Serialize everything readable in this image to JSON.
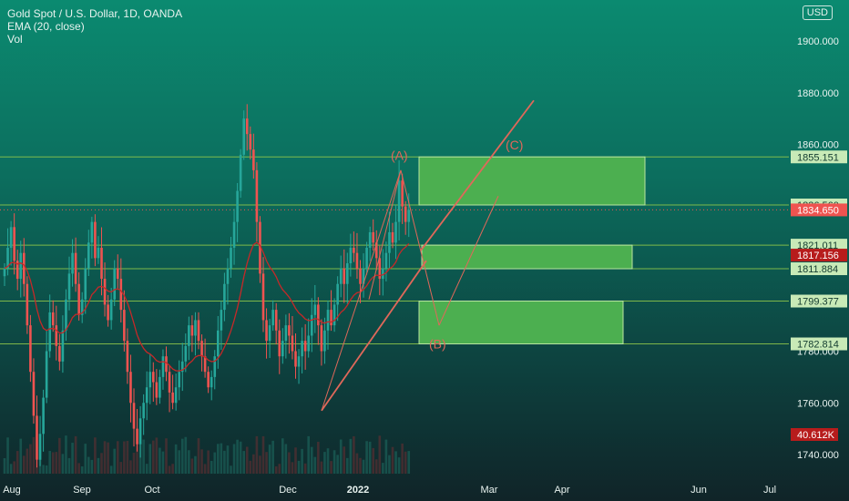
{
  "legend": {
    "symbol": "Gold Spot / U.S. Dollar, 1D, OANDA",
    "ema": "EMA (20, close)",
    "vol": "Vol"
  },
  "currency_button": "USD",
  "colors": {
    "up": "#26a69a",
    "down": "#ef5350",
    "ema": "#c62828",
    "zone": "#4caf50",
    "hline": "#8bc34a",
    "last_price_tag": "#ef5350",
    "volume_tag": "#b71c1c",
    "annotation": "#e0685a"
  },
  "chart_data": {
    "type": "candlestick",
    "title": "Gold Spot / U.S. Dollar, 1D, OANDA",
    "y_ticks": [
      "1900.000",
      "1880.000",
      "1860.000",
      "1760.000",
      "1740.000"
    ],
    "ylim": [
      1730,
      1910
    ],
    "x_labels": [
      "Aug",
      "Sep",
      "Oct",
      "Dec",
      "2022",
      "Mar",
      "Apr",
      "Jun",
      "Jul"
    ],
    "x_labels_bold": [
      "2022"
    ],
    "horizontal_levels": [
      1855.151,
      1836.56,
      1821.011,
      1811.884,
      1799.377,
      1782.814
    ],
    "price_tags": [
      {
        "label": "1855.151",
        "value": 1855.151,
        "kind": "level"
      },
      {
        "label": "1836.560",
        "value": 1836.56,
        "kind": "level"
      },
      {
        "label": "1834.650",
        "value": 1834.65,
        "kind": "last"
      },
      {
        "label": "1821.011",
        "value": 1821.011,
        "kind": "level"
      },
      {
        "label": "1817.156",
        "value": 1817.156,
        "kind": "ema"
      },
      {
        "label": "1811.884",
        "value": 1811.884,
        "kind": "level"
      },
      {
        "label": "1799.377",
        "value": 1799.377,
        "kind": "level"
      },
      {
        "label": "1782.814",
        "value": 1782.814,
        "kind": "level"
      }
    ],
    "volume_tag": "40.612K",
    "partial_tick": "1780.000",
    "annotations": [
      "(A)",
      "(B)",
      "(C)"
    ],
    "zones": [
      {
        "top": 1855.151,
        "bottom": 1836.56
      },
      {
        "top": 1821.011,
        "bottom": 1811.884
      },
      {
        "top": 1799.377,
        "bottom": 1782.814
      }
    ],
    "closes": [
      1812,
      1820,
      1828,
      1815,
      1808,
      1818,
      1806,
      1790,
      1772,
      1755,
      1738,
      1748,
      1762,
      1780,
      1795,
      1790,
      1782,
      1776,
      1788,
      1800,
      1810,
      1818,
      1806,
      1794,
      1800,
      1812,
      1822,
      1830,
      1816,
      1820,
      1808,
      1798,
      1792,
      1800,
      1812,
      1808,
      1796,
      1784,
      1772,
      1760,
      1750,
      1744,
      1754,
      1760,
      1766,
      1772,
      1768,
      1762,
      1770,
      1778,
      1772,
      1764,
      1760,
      1766,
      1772,
      1776,
      1782,
      1790,
      1786,
      1792,
      1784,
      1778,
      1772,
      1766,
      1770,
      1778,
      1788,
      1796,
      1806,
      1812,
      1820,
      1830,
      1842,
      1856,
      1870,
      1864,
      1858,
      1850,
      1830,
      1810,
      1792,
      1784,
      1790,
      1796,
      1788,
      1778,
      1784,
      1790,
      1786,
      1780,
      1774,
      1778,
      1784,
      1780,
      1786,
      1794,
      1798,
      1790,
      1780,
      1788,
      1796,
      1790,
      1798,
      1806,
      1812,
      1806,
      1814,
      1820,
      1818,
      1812,
      1806,
      1812,
      1820,
      1826,
      1822,
      1816,
      1808,
      1812,
      1818,
      1826,
      1822,
      1830,
      1846,
      1836,
      1830,
      1834.65
    ]
  }
}
